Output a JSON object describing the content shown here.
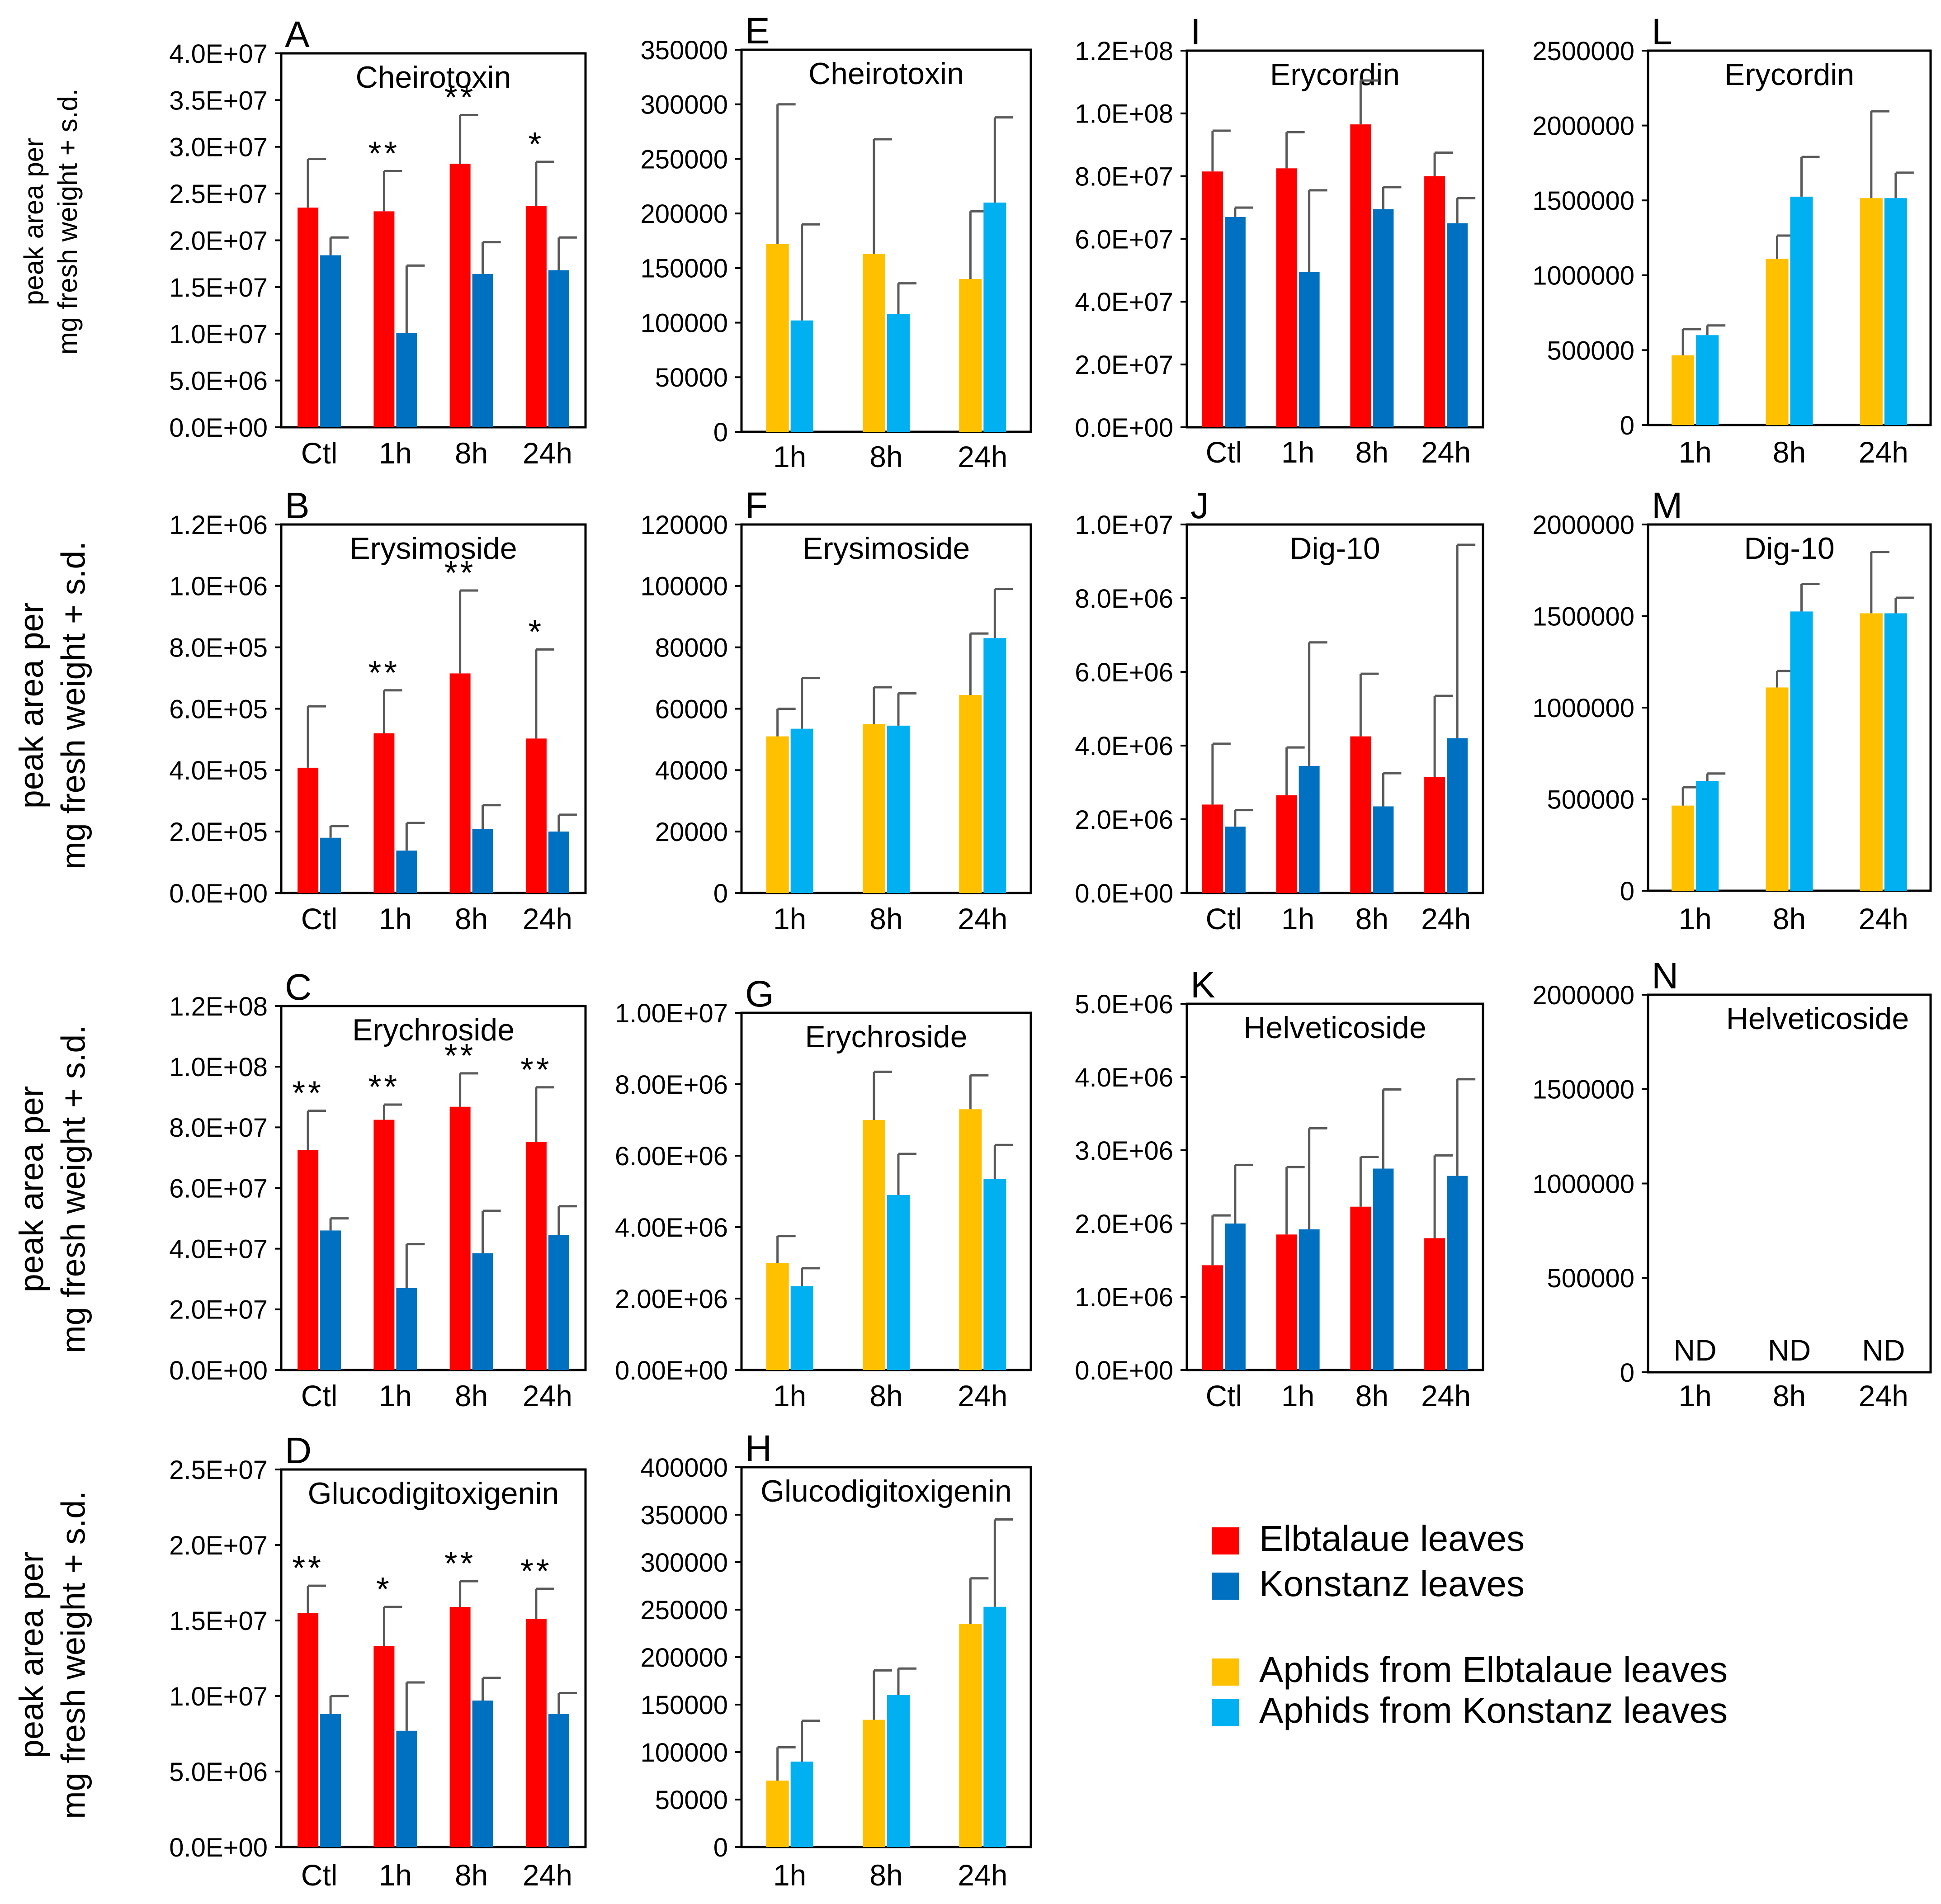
{
  "figure": {
    "y_axis_label": [
      "peak area per",
      "mg fresh weight + s.d."
    ],
    "colors": {
      "elbtalaue_leaves": "#ff0000",
      "konstanz_leaves": "#0070c0",
      "aphids_elbtalaue": "#ffc000",
      "aphids_konstanz": "#00b0f0",
      "error_bar": "#595959",
      "axis": "#000000"
    }
  },
  "legend": {
    "items": [
      {
        "label": "Elbtalaue leaves",
        "color": "#ff0000"
      },
      {
        "label": "Konstanz leaves",
        "color": "#0070c0"
      },
      {
        "label": "Aphids from Elbtalaue leaves",
        "color": "#ffc000"
      },
      {
        "label": "Aphids from Konstanz leaves",
        "color": "#00b0f0"
      }
    ]
  },
  "chart_data": [
    {
      "panel": "A",
      "title": "Cheirotoxin",
      "type": "bar",
      "categories": [
        "Ctl",
        "1h",
        "8h",
        "24h"
      ],
      "ylim": [
        0,
        40000000
      ],
      "yticks": [
        "0.0E+00",
        "5.0E+06",
        "1.0E+07",
        "1.5E+07",
        "2.0E+07",
        "2.5E+07",
        "3.0E+07",
        "3.5E+07",
        "4.0E+07"
      ],
      "series": [
        {
          "name": "Elbtalaue leaves",
          "values": [
            23500000,
            23100000,
            28200000,
            23700000
          ],
          "errors": [
            5200000,
            4300000,
            5200000,
            4700000
          ]
        },
        {
          "name": "Konstanz leaves",
          "values": [
            18400000,
            10100000,
            16400000,
            16800000
          ],
          "errors": [
            1900000,
            7200000,
            3400000,
            3500000
          ]
        }
      ],
      "significance": [
        "",
        "**",
        "**",
        "*"
      ]
    },
    {
      "panel": "B",
      "title": "Erysimoside",
      "type": "bar",
      "categories": [
        "Ctl",
        "1h",
        "8h",
        "24h"
      ],
      "ylim": [
        0,
        1200000
      ],
      "yticks": [
        "0.0E+00",
        "2.0E+05",
        "4.0E+05",
        "6.0E+05",
        "8.0E+05",
        "1.0E+06",
        "1.2E+06"
      ],
      "series": [
        {
          "name": "Elbtalaue leaves",
          "values": [
            408000,
            520000,
            715000,
            503000
          ],
          "errors": [
            200000,
            140000,
            270000,
            290000
          ]
        },
        {
          "name": "Konstanz leaves",
          "values": [
            180000,
            138000,
            208000,
            200000
          ],
          "errors": [
            38000,
            90000,
            78000,
            55000
          ]
        }
      ],
      "significance": [
        "",
        "**",
        "**",
        "*"
      ]
    },
    {
      "panel": "C",
      "title": "Erychroside",
      "type": "bar",
      "categories": [
        "Ctl",
        "1h",
        "8h",
        "24h"
      ],
      "ylim": [
        0,
        120000000
      ],
      "yticks": [
        "0.0E+00",
        "2.0E+07",
        "4.0E+07",
        "6.0E+07",
        "8.0E+07",
        "1.0E+08",
        "1.2E+08"
      ],
      "series": [
        {
          "name": "Elbtalaue leaves",
          "values": [
            72500000,
            82500000,
            86800000,
            75200000
          ],
          "errors": [
            13000000,
            5000000,
            11000000,
            18000000
          ]
        },
        {
          "name": "Konstanz leaves",
          "values": [
            46000000,
            27000000,
            38500000,
            44500000
          ],
          "errors": [
            4000000,
            14500000,
            14000000,
            9500000
          ]
        }
      ],
      "significance": [
        "**",
        "**",
        "**",
        "**"
      ]
    },
    {
      "panel": "D",
      "title": "Glucodigitoxigenin",
      "type": "bar",
      "categories": [
        "Ctl",
        "1h",
        "8h",
        "24h"
      ],
      "ylim": [
        0,
        25000000
      ],
      "yticks": [
        "0.0E+00",
        "5.0E+06",
        "1.0E+07",
        "1.5E+07",
        "2.0E+07",
        "2.5E+07"
      ],
      "series": [
        {
          "name": "Elbtalaue leaves",
          "values": [
            15500000,
            13300000,
            15900000,
            15100000
          ],
          "errors": [
            1800000,
            2600000,
            1700000,
            2000000
          ]
        },
        {
          "name": "Konstanz leaves",
          "values": [
            8800000,
            7700000,
            9700000,
            8800000
          ],
          "errors": [
            1200000,
            3200000,
            1500000,
            1400000
          ]
        }
      ],
      "significance": [
        "**",
        "*",
        "**",
        "**"
      ]
    },
    {
      "panel": "E",
      "title": "Cheirotoxin",
      "type": "bar",
      "categories": [
        "1h",
        "8h",
        "24h"
      ],
      "ylim": [
        0,
        350000
      ],
      "yticks": [
        "0",
        "50000",
        "100000",
        "150000",
        "200000",
        "250000",
        "300000",
        "350000"
      ],
      "series": [
        {
          "name": "Aphids from Elbtalaue leaves",
          "values": [
            172000,
            163000,
            140000
          ],
          "errors": [
            128000,
            105000,
            62000
          ]
        },
        {
          "name": "Aphids from Konstanz leaves",
          "values": [
            102000,
            108000,
            210000
          ],
          "errors": [
            88000,
            28000,
            78000
          ]
        }
      ]
    },
    {
      "panel": "F",
      "title": "Erysimoside",
      "type": "bar",
      "categories": [
        "1h",
        "8h",
        "24h"
      ],
      "ylim": [
        0,
        120000
      ],
      "yticks": [
        "0",
        "20000",
        "40000",
        "60000",
        "80000",
        "100000",
        "120000"
      ],
      "series": [
        {
          "name": "Aphids from Elbtalaue leaves",
          "values": [
            51000,
            55000,
            64500
          ],
          "errors": [
            9000,
            12000,
            20000
          ]
        },
        {
          "name": "Aphids from Konstanz leaves",
          "values": [
            53500,
            54500,
            83000
          ],
          "errors": [
            16500,
            10500,
            16000
          ]
        }
      ]
    },
    {
      "panel": "G",
      "title": "Erychroside",
      "type": "bar",
      "categories": [
        "1h",
        "8h",
        "24h"
      ],
      "ylim": [
        0,
        10000000
      ],
      "yticks": [
        "0.00E+00",
        "2.00E+06",
        "4.00E+06",
        "6.00E+06",
        "8.00E+06",
        "1.00E+07"
      ],
      "series": [
        {
          "name": "Aphids from Elbtalaue leaves",
          "values": [
            3000000,
            7000000,
            7300000
          ],
          "errors": [
            750000,
            1350000,
            950000
          ]
        },
        {
          "name": "Aphids from Konstanz leaves",
          "values": [
            2350000,
            4900000,
            5350000
          ],
          "errors": [
            500000,
            1150000,
            950000
          ]
        }
      ]
    },
    {
      "panel": "H",
      "title": "Glucodigitoxigenin",
      "type": "bar",
      "categories": [
        "1h",
        "8h",
        "24h"
      ],
      "ylim": [
        0,
        400000
      ],
      "yticks": [
        "0",
        "50000",
        "100000",
        "150000",
        "200000",
        "250000",
        "300000",
        "350000",
        "400000"
      ],
      "series": [
        {
          "name": "Aphids from Elbtalaue leaves",
          "values": [
            70000,
            134000,
            235000
          ],
          "errors": [
            35000,
            52000,
            48000
          ]
        },
        {
          "name": "Aphids from Konstanz leaves",
          "values": [
            90000,
            160000,
            253000
          ],
          "errors": [
            43000,
            28000,
            92000
          ]
        }
      ]
    },
    {
      "panel": "I",
      "title": "Erycordin",
      "type": "bar",
      "categories": [
        "Ctl",
        "1h",
        "8h",
        "24h"
      ],
      "ylim": [
        0,
        120000000
      ],
      "yticks": [
        "0.0E+00",
        "2.0E+07",
        "4.0E+07",
        "6.0E+07",
        "8.0E+07",
        "1.0E+08",
        "1.2E+08"
      ],
      "series": [
        {
          "name": "Elbtalaue leaves",
          "values": [
            81500000,
            82500000,
            96500000,
            80000000
          ],
          "errors": [
            13000000,
            11500000,
            14000000,
            7500000
          ]
        },
        {
          "name": "Konstanz leaves",
          "values": [
            67000000,
            49500000,
            69500000,
            65000000
          ],
          "errors": [
            3000000,
            26000000,
            7000000,
            8000000
          ]
        }
      ]
    },
    {
      "panel": "J",
      "title": "Dig-10",
      "type": "bar",
      "categories": [
        "Ctl",
        "1h",
        "8h",
        "24h"
      ],
      "ylim": [
        0,
        10000000
      ],
      "yticks": [
        "0.0E+00",
        "2.0E+06",
        "4.0E+06",
        "6.0E+06",
        "8.0E+06",
        "1.0E+07"
      ],
      "series": [
        {
          "name": "Elbtalaue leaves",
          "values": [
            2400000,
            2650000,
            4250000,
            3150000
          ],
          "errors": [
            1650000,
            1300000,
            1700000,
            2200000
          ]
        },
        {
          "name": "Konstanz leaves",
          "values": [
            1800000,
            3450000,
            2350000,
            4200000
          ],
          "errors": [
            450000,
            3350000,
            900000,
            5250000
          ]
        }
      ]
    },
    {
      "panel": "K",
      "title": "Helveticoside",
      "type": "bar",
      "categories": [
        "Ctl",
        "1h",
        "8h",
        "24h"
      ],
      "ylim": [
        0,
        5000000
      ],
      "yticks": [
        "0.0E+00",
        "1.0E+06",
        "2.0E+06",
        "3.0E+06",
        "4.0E+06",
        "5.0E+06"
      ],
      "series": [
        {
          "name": "Elbtalaue leaves",
          "values": [
            1430000,
            1850000,
            2230000,
            1800000
          ],
          "errors": [
            680000,
            920000,
            680000,
            1130000
          ]
        },
        {
          "name": "Konstanz leaves",
          "values": [
            2000000,
            1920000,
            2750000,
            2650000
          ],
          "errors": [
            800000,
            1380000,
            1080000,
            1320000
          ]
        }
      ]
    },
    {
      "panel": "L",
      "title": "Erycordin",
      "type": "bar",
      "categories": [
        "1h",
        "8h",
        "24h"
      ],
      "ylim": [
        0,
        2500000
      ],
      "yticks": [
        "0",
        "500000",
        "1000000",
        "1500000",
        "2000000",
        "2500000"
      ],
      "series": [
        {
          "name": "Aphids from Elbtalaue leaves",
          "values": [
            465000,
            1110000,
            1515000
          ],
          "errors": [
            175000,
            155000,
            580000
          ]
        },
        {
          "name": "Aphids from Konstanz leaves",
          "values": [
            600000,
            1525000,
            1515000
          ],
          "errors": [
            65000,
            265000,
            170000
          ]
        }
      ]
    },
    {
      "panel": "M",
      "title": "Dig-10",
      "type": "bar",
      "categories": [
        "1h",
        "8h",
        "24h"
      ],
      "ylim": [
        0,
        2000000
      ],
      "yticks": [
        "0",
        "500000",
        "1000000",
        "1500000",
        "2000000"
      ],
      "series": [
        {
          "name": "Aphids from Elbtalaue leaves",
          "values": [
            465000,
            1110000,
            1515000
          ],
          "errors": [
            100000,
            90000,
            335000
          ]
        },
        {
          "name": "Aphids from Konstanz leaves",
          "values": [
            600000,
            1525000,
            1515000
          ],
          "errors": [
            40000,
            150000,
            85000
          ]
        }
      ]
    },
    {
      "panel": "N",
      "title": "Helveticoside",
      "type": "bar",
      "categories": [
        "1h",
        "8h",
        "24h"
      ],
      "ylim": [
        0,
        2000000
      ],
      "yticks": [
        "0",
        "500000",
        "1000000",
        "1500000",
        "2000000"
      ],
      "series": [],
      "category_notes": [
        "ND",
        "ND",
        "ND"
      ]
    }
  ]
}
